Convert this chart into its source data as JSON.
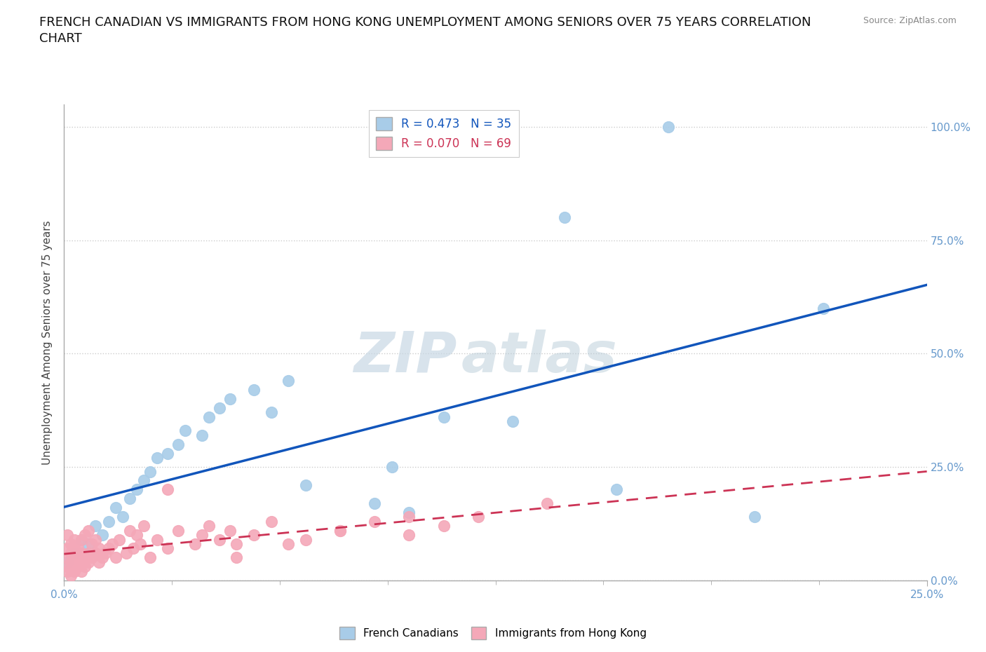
{
  "title_line1": "FRENCH CANADIAN VS IMMIGRANTS FROM HONG KONG UNEMPLOYMENT AMONG SENIORS OVER 75 YEARS CORRELATION",
  "title_line2": "CHART",
  "source_text": "Source: ZipAtlas.com",
  "ylabel": "Unemployment Among Seniors over 75 years",
  "xlim": [
    0.0,
    0.25
  ],
  "ylim": [
    0.0,
    1.05
  ],
  "ytick_vals": [
    0.0,
    0.25,
    0.5,
    0.75,
    1.0
  ],
  "ytick_labels": [
    "0.0%",
    "25.0%",
    "50.0%",
    "75.0%",
    "100.0%"
  ],
  "xtick_vals": [
    0.0,
    0.25
  ],
  "xtick_minor_vals": [
    0.03125,
    0.0625,
    0.09375,
    0.125,
    0.15625,
    0.1875,
    0.21875
  ],
  "xtick_labels": [
    "0.0%",
    "25.0%"
  ],
  "blue_R": 0.473,
  "blue_N": 35,
  "pink_R": 0.07,
  "pink_N": 69,
  "legend1_label": "French Canadians",
  "legend2_label": "Immigrants from Hong Kong",
  "watermark_zip": "ZIP",
  "watermark_atlas": "atlas",
  "blue_x": [
    0.001,
    0.003,
    0.005,
    0.007,
    0.009,
    0.011,
    0.013,
    0.015,
    0.017,
    0.019,
    0.021,
    0.023,
    0.025,
    0.027,
    0.03,
    0.033,
    0.035,
    0.04,
    0.042,
    0.045,
    0.048,
    0.055,
    0.06,
    0.065,
    0.07,
    0.09,
    0.1,
    0.11,
    0.145,
    0.175,
    0.22,
    0.095,
    0.13,
    0.16,
    0.2
  ],
  "blue_y": [
    0.04,
    0.06,
    0.09,
    0.08,
    0.12,
    0.1,
    0.13,
    0.16,
    0.14,
    0.18,
    0.2,
    0.22,
    0.24,
    0.27,
    0.28,
    0.3,
    0.33,
    0.32,
    0.36,
    0.38,
    0.4,
    0.42,
    0.37,
    0.44,
    0.21,
    0.17,
    0.15,
    0.36,
    0.8,
    1.0,
    0.6,
    0.25,
    0.35,
    0.2,
    0.14
  ],
  "pink_x": [
    0.001,
    0.001,
    0.001,
    0.001,
    0.001,
    0.002,
    0.002,
    0.002,
    0.002,
    0.003,
    0.003,
    0.003,
    0.003,
    0.003,
    0.004,
    0.004,
    0.004,
    0.005,
    0.005,
    0.005,
    0.005,
    0.006,
    0.006,
    0.006,
    0.007,
    0.007,
    0.007,
    0.008,
    0.008,
    0.009,
    0.009,
    0.01,
    0.01,
    0.011,
    0.012,
    0.013,
    0.014,
    0.015,
    0.016,
    0.018,
    0.019,
    0.02,
    0.021,
    0.022,
    0.023,
    0.025,
    0.027,
    0.03,
    0.033,
    0.038,
    0.04,
    0.042,
    0.045,
    0.048,
    0.05,
    0.055,
    0.06,
    0.07,
    0.08,
    0.09,
    0.1,
    0.11,
    0.12,
    0.03,
    0.05,
    0.065,
    0.08,
    0.1,
    0.14
  ],
  "pink_y": [
    0.02,
    0.03,
    0.05,
    0.07,
    0.1,
    0.01,
    0.04,
    0.06,
    0.08,
    0.02,
    0.04,
    0.05,
    0.07,
    0.09,
    0.03,
    0.05,
    0.07,
    0.02,
    0.04,
    0.06,
    0.09,
    0.03,
    0.05,
    0.1,
    0.04,
    0.06,
    0.11,
    0.05,
    0.08,
    0.06,
    0.09,
    0.04,
    0.07,
    0.05,
    0.06,
    0.07,
    0.08,
    0.05,
    0.09,
    0.06,
    0.11,
    0.07,
    0.1,
    0.08,
    0.12,
    0.05,
    0.09,
    0.07,
    0.11,
    0.08,
    0.1,
    0.12,
    0.09,
    0.11,
    0.08,
    0.1,
    0.13,
    0.09,
    0.11,
    0.13,
    0.1,
    0.12,
    0.14,
    0.2,
    0.05,
    0.08,
    0.11,
    0.14,
    0.17
  ],
  "blue_color": "#a8cce8",
  "pink_color": "#f4a8b8",
  "blue_line_color": "#1155bb",
  "pink_line_color": "#cc3355",
  "background_color": "#ffffff",
  "grid_color": "#cccccc",
  "tick_color": "#6699cc",
  "title_fontsize": 13,
  "axis_label_fontsize": 11,
  "tick_fontsize": 11
}
